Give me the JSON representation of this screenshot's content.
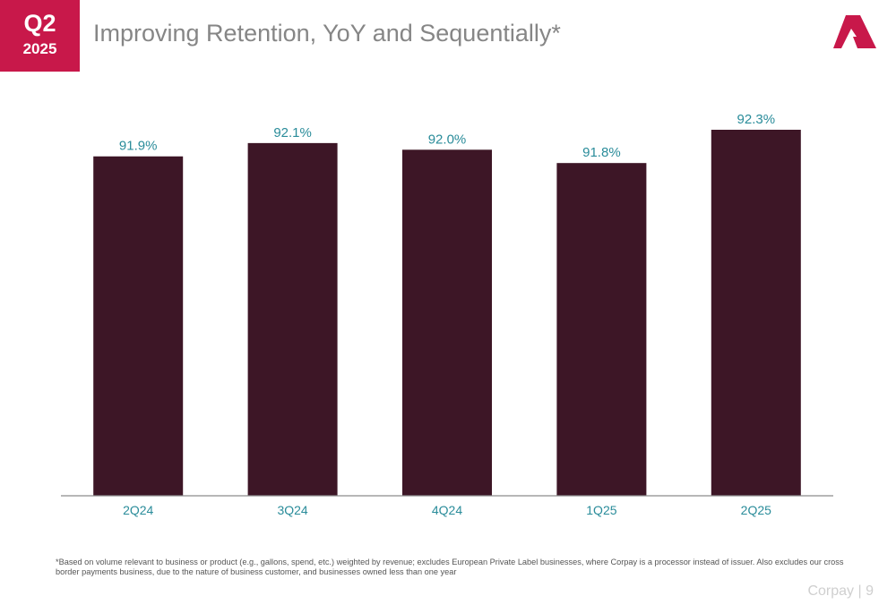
{
  "badge": {
    "quarter": "Q2",
    "year": "2025"
  },
  "header": {
    "title": "Improving Retention, YoY and Sequentially*"
  },
  "colors": {
    "brand": "#c8184a",
    "bar": "#3d1626",
    "label": "#2a8c9a",
    "axis": "#8c8c8c"
  },
  "chart_data": {
    "type": "bar",
    "categories": [
      "2Q24",
      "3Q24",
      "4Q24",
      "1Q25",
      "2Q25"
    ],
    "values": [
      91.9,
      92.1,
      92.0,
      91.8,
      92.3
    ],
    "value_labels": [
      "91.9%",
      "92.1%",
      "92.0%",
      "91.8%",
      "92.3%"
    ],
    "title": "",
    "xlabel": "",
    "ylabel": "",
    "ylim": [
      86.8,
      92.5
    ],
    "grid": false,
    "legend": "none"
  },
  "footnote": "*Based on volume relevant to business or product (e.g., gallons, spend, etc.) weighted by revenue; excludes European Private Label businesses, where Corpay is a processor instead of issuer. Also excludes our cross border payments business, due to the nature of business customer, and businesses owned less than one year",
  "footer": {
    "brand": "Corpay",
    "separator": "|",
    "page": "9"
  }
}
